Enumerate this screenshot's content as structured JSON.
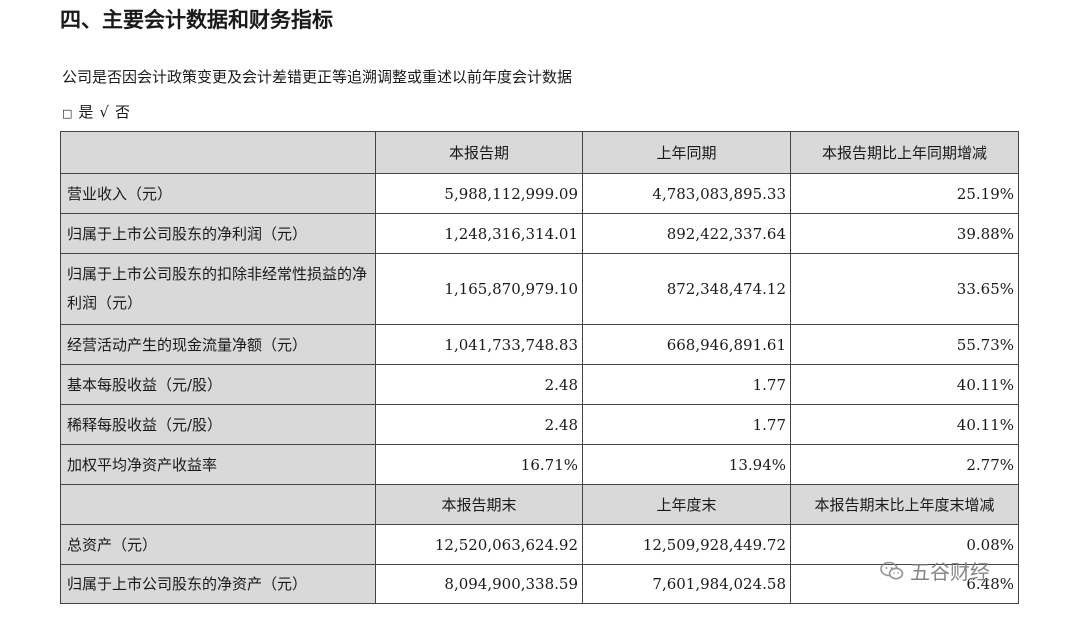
{
  "heading": "四、主要会计数据和财务指标",
  "question": "公司是否因会计政策变更及会计差错更正等追溯调整或重述以前年度会计数据",
  "choices": {
    "box": "□",
    "yes": "是",
    "tick": "√",
    "no": "否"
  },
  "table": {
    "header1": [
      "本报告期",
      "上年同期",
      "本报告期比上年同期增减"
    ],
    "rows1": [
      {
        "label": "营业收入（元）",
        "values": [
          "5,988,112,999.09",
          "4,783,083,895.33",
          "25.19%"
        ]
      },
      {
        "label": "归属于上市公司股东的净利润（元）",
        "values": [
          "1,248,316,314.01",
          "892,422,337.64",
          "39.88%"
        ]
      },
      {
        "label": "归属于上市公司股东的扣除非经常性损益的净利润（元）",
        "values": [
          "1,165,870,979.10",
          "872,348,474.12",
          "33.65%"
        ]
      },
      {
        "label": "经营活动产生的现金流量净额（元）",
        "values": [
          "1,041,733,748.83",
          "668,946,891.61",
          "55.73%"
        ]
      },
      {
        "label": "基本每股收益（元/股）",
        "values": [
          "2.48",
          "1.77",
          "40.11%"
        ]
      },
      {
        "label": "稀释每股收益（元/股）",
        "values": [
          "2.48",
          "1.77",
          "40.11%"
        ]
      },
      {
        "label": "加权平均净资产收益率",
        "values": [
          "16.71%",
          "13.94%",
          "2.77%"
        ]
      }
    ],
    "header2": [
      "本报告期末",
      "上年度末",
      "本报告期末比上年度末增减"
    ],
    "rows2": [
      {
        "label": "总资产（元）",
        "values": [
          "12,520,063,624.92",
          "12,509,928,449.72",
          "0.08%"
        ]
      },
      {
        "label": "归属于上市公司股东的净资产（元）",
        "values": [
          "8,094,900,338.59",
          "7,601,984,024.58",
          "6.48%"
        ]
      }
    ]
  },
  "watermark": {
    "text": "五谷财经",
    "icon": "wechat-icon"
  }
}
